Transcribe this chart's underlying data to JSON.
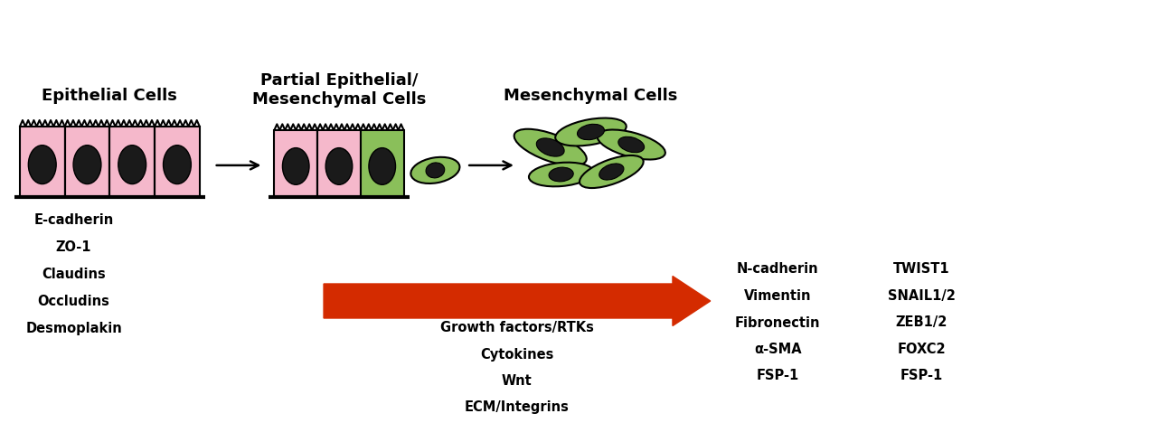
{
  "bg_color": "#ffffff",
  "title_epithelial": "Epithelial Cells",
  "title_partial": "Partial Epithelial/\nMesenchymal Cells",
  "title_mesenchymal": "Mesenchymal Cells",
  "epithelial_labels": [
    "E-cadherin",
    "ZO-1",
    "Claudins",
    "Occludins",
    "Desmoplakin"
  ],
  "inducer_labels": [
    "Growth factors/RTKs",
    "Cytokines",
    "Wnt",
    "ECM/Integrins"
  ],
  "mesen_labels_left": [
    "N-cadherin",
    "Vimentin",
    "Fibronectin",
    "α-SMA",
    "FSP-1"
  ],
  "mesen_labels_right": [
    "TWIST1",
    "SNAIL1/2",
    "ZEB1/2",
    "FOXC2",
    "FSP-1"
  ],
  "cell_pink": "#f5b8cb",
  "cell_green": "#8abf5a",
  "cell_outline": "#000000",
  "nucleus_color": "#1a1a1a",
  "arrow_color": "#d42b00",
  "text_color": "#000000",
  "font_size_title": 13,
  "font_size_label": 10.5,
  "xlim": [
    0,
    13
  ],
  "ylim": [
    0,
    4.68
  ]
}
